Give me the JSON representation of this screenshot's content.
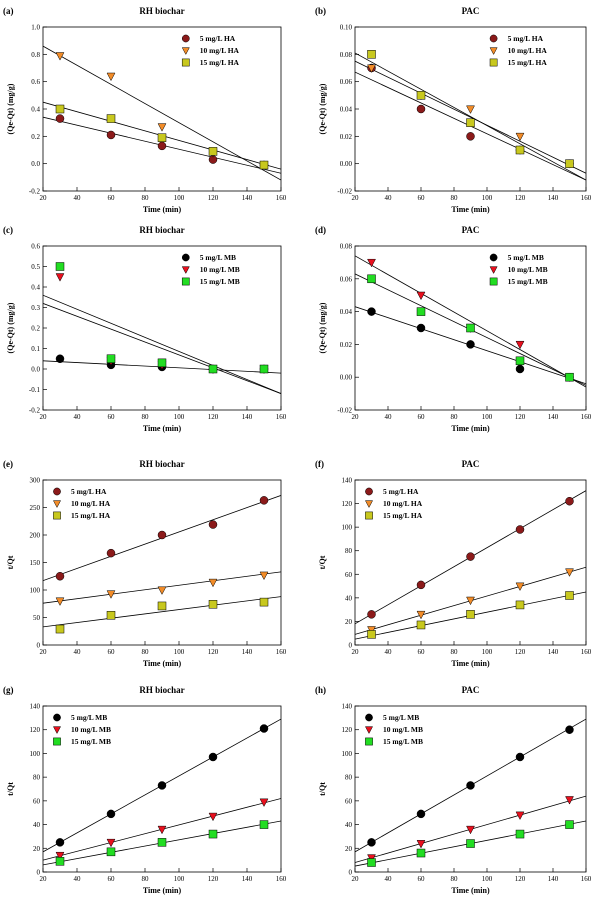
{
  "chart_data": [
    {
      "panel": "(a)",
      "type": "scatter",
      "title": "RH biochar",
      "xlabel": "Time (min)",
      "ylabel": "(Qe-Qt) (mg/g)",
      "xlim": [
        20,
        160
      ],
      "ylim": [
        -0.2,
        1.0
      ],
      "xticks": [
        20,
        40,
        60,
        80,
        100,
        120,
        140,
        160
      ],
      "yticks": [
        -0.2,
        0.0,
        0.2,
        0.4,
        0.6,
        0.8,
        1.0
      ],
      "legend": "top-right",
      "series": [
        {
          "name": "5 mg/L HA",
          "marker": "circle",
          "color": "#8b1a1a",
          "x": [
            30,
            60,
            90,
            120,
            150
          ],
          "y": [
            0.33,
            0.21,
            0.13,
            0.03,
            -0.01
          ],
          "fit": [
            [
              20,
              0.34
            ],
            [
              160,
              -0.07
            ]
          ]
        },
        {
          "name": "10 mg/L HA",
          "marker": "triangle-down",
          "color": "#f28c28",
          "x": [
            30,
            60,
            90,
            120,
            150
          ],
          "y": [
            0.79,
            0.64,
            0.27,
            0.08,
            -0.01
          ],
          "fit": [
            [
              20,
              0.86
            ],
            [
              160,
              -0.12
            ]
          ]
        },
        {
          "name": "15 mg/L HA",
          "marker": "square",
          "color": "#c8c81e",
          "x": [
            30,
            60,
            90,
            120,
            150
          ],
          "y": [
            0.4,
            0.33,
            0.19,
            0.09,
            -0.01
          ],
          "fit": [
            [
              20,
              0.45
            ],
            [
              160,
              -0.04
            ]
          ]
        }
      ]
    },
    {
      "panel": "(b)",
      "type": "scatter",
      "title": "PAC",
      "xlabel": "Time (min)",
      "ylabel": "(Qe-Qt) (mg/g)",
      "xlim": [
        20,
        160
      ],
      "ylim": [
        -0.02,
        0.1
      ],
      "xticks": [
        20,
        40,
        60,
        80,
        100,
        120,
        140,
        160
      ],
      "yticks": [
        -0.02,
        0.0,
        0.02,
        0.04,
        0.06,
        0.08,
        0.1
      ],
      "legend": "top-right",
      "series": [
        {
          "name": "5 mg/L HA",
          "marker": "circle",
          "color": "#8b1a1a",
          "x": [
            30,
            60,
            90,
            120,
            150
          ],
          "y": [
            0.07,
            0.04,
            0.02,
            0.01,
            0.0
          ],
          "fit": [
            [
              20,
              0.067
            ],
            [
              160,
              -0.012
            ]
          ]
        },
        {
          "name": "10 mg/L HA",
          "marker": "triangle-down",
          "color": "#f28c28",
          "x": [
            30,
            60,
            90,
            120,
            150
          ],
          "y": [
            0.07,
            0.05,
            0.04,
            0.02,
            0.0
          ],
          "fit": [
            [
              20,
              0.075
            ],
            [
              160,
              -0.007
            ]
          ]
        },
        {
          "name": "15 mg/L HA",
          "marker": "square",
          "color": "#c8c81e",
          "x": [
            30,
            60,
            90,
            120,
            150
          ],
          "y": [
            0.08,
            0.05,
            0.03,
            0.01,
            0.0
          ],
          "fit": [
            [
              20,
              0.081
            ],
            [
              160,
              -0.012
            ]
          ]
        }
      ]
    },
    {
      "panel": "(c)",
      "type": "scatter",
      "title": "RH biochar",
      "xlabel": "Time (min)",
      "ylabel": "(Qe-Qt) (mg/g)",
      "xlim": [
        20,
        160
      ],
      "ylim": [
        -0.2,
        0.6
      ],
      "xticks": [
        20,
        40,
        60,
        80,
        100,
        120,
        140,
        160
      ],
      "yticks": [
        -0.2,
        -0.1,
        0.0,
        0.1,
        0.2,
        0.3,
        0.4,
        0.5,
        0.6
      ],
      "legend": "top-right",
      "series": [
        {
          "name": "5 mg/L MB",
          "marker": "circle",
          "color": "#000000",
          "x": [
            30,
            60,
            90,
            120,
            150
          ],
          "y": [
            0.05,
            0.02,
            0.01,
            0.0,
            0.0
          ],
          "fit": [
            [
              20,
              0.04
            ],
            [
              160,
              -0.02
            ]
          ]
        },
        {
          "name": "10 mg/L MB",
          "marker": "triangle-down",
          "color": "#e8101e",
          "x": [
            30,
            60,
            90,
            120,
            150
          ],
          "y": [
            0.45,
            0.04,
            0.02,
            0.0,
            0.0
          ],
          "fit": [
            [
              20,
              0.36
            ],
            [
              160,
              -0.12
            ]
          ]
        },
        {
          "name": "15 mg/L MB",
          "marker": "square",
          "color": "#22dd22",
          "x": [
            30,
            60,
            90,
            120,
            150
          ],
          "y": [
            0.5,
            0.05,
            0.03,
            0.0,
            0.0
          ],
          "fit": [
            [
              20,
              0.32
            ],
            [
              160,
              -0.12
            ]
          ]
        }
      ]
    },
    {
      "panel": "(d)",
      "type": "scatter",
      "title": "PAC",
      "xlabel": "Time (min)",
      "ylabel": "(Qe-Qt) (mg/g)",
      "xlim": [
        20,
        160
      ],
      "ylim": [
        -0.02,
        0.08
      ],
      "xticks": [
        20,
        40,
        60,
        80,
        100,
        120,
        140,
        160
      ],
      "yticks": [
        -0.02,
        0.0,
        0.02,
        0.04,
        0.06,
        0.08
      ],
      "legend": "top-right",
      "series": [
        {
          "name": "5 mg/L MB",
          "marker": "circle",
          "color": "#000000",
          "x": [
            30,
            60,
            90,
            120,
            150
          ],
          "y": [
            0.04,
            0.03,
            0.02,
            0.005,
            0.0
          ],
          "fit": [
            [
              20,
              0.043
            ],
            [
              160,
              -0.004
            ]
          ]
        },
        {
          "name": "10 mg/L MB",
          "marker": "triangle-down",
          "color": "#e8101e",
          "x": [
            30,
            60,
            90,
            120,
            150
          ],
          "y": [
            0.07,
            0.05,
            0.03,
            0.02,
            0.0
          ],
          "fit": [
            [
              20,
              0.074
            ],
            [
              160,
              -0.006
            ]
          ]
        },
        {
          "name": "15 mg/L MB",
          "marker": "square",
          "color": "#22dd22",
          "x": [
            30,
            60,
            90,
            120,
            150
          ],
          "y": [
            0.06,
            0.04,
            0.03,
            0.01,
            0.0
          ],
          "fit": [
            [
              20,
              0.063
            ],
            [
              160,
              -0.005
            ]
          ]
        }
      ]
    },
    {
      "panel": "(e)",
      "type": "scatter",
      "title": "RH biochar",
      "xlabel": "Time (min)",
      "ylabel": "t/Qt",
      "xlim": [
        20,
        160
      ],
      "ylim": [
        0,
        300
      ],
      "xticks": [
        20,
        40,
        60,
        80,
        100,
        120,
        140,
        160
      ],
      "yticks": [
        0,
        50,
        100,
        150,
        200,
        250,
        300
      ],
      "legend": "top-left",
      "series": [
        {
          "name": "5 mg/L HA",
          "marker": "circle",
          "color": "#8b1a1a",
          "x": [
            30,
            60,
            90,
            120,
            150
          ],
          "y": [
            125,
            167,
            200,
            219,
            263
          ],
          "fit": [
            [
              20,
              117
            ],
            [
              160,
              272
            ]
          ]
        },
        {
          "name": "10 mg/L HA",
          "marker": "triangle-down",
          "color": "#f28c28",
          "x": [
            30,
            60,
            90,
            120,
            150
          ],
          "y": [
            80,
            93,
            100,
            114,
            127
          ],
          "fit": [
            [
              20,
              76
            ],
            [
              160,
              133
            ]
          ]
        },
        {
          "name": "15 mg/L HA",
          "marker": "square",
          "color": "#c8c81e",
          "x": [
            30,
            60,
            90,
            120,
            150
          ],
          "y": [
            29,
            54,
            71,
            74,
            78
          ],
          "fit": [
            [
              20,
              33
            ],
            [
              160,
              88
            ]
          ]
        }
      ]
    },
    {
      "panel": "(f)",
      "type": "scatter",
      "title": "PAC",
      "xlabel": "Time (min)",
      "ylabel": "t/Qt",
      "xlim": [
        20,
        160
      ],
      "ylim": [
        0,
        140
      ],
      "xticks": [
        20,
        40,
        60,
        80,
        100,
        120,
        140,
        160
      ],
      "yticks": [
        0,
        20,
        40,
        60,
        80,
        100,
        120,
        140
      ],
      "legend": "top-left",
      "series": [
        {
          "name": "5 mg/L HA",
          "marker": "circle",
          "color": "#8b1a1a",
          "x": [
            30,
            60,
            90,
            120,
            150
          ],
          "y": [
            26,
            51,
            75,
            98,
            122
          ],
          "fit": [
            [
              20,
              18
            ],
            [
              160,
              131
            ]
          ]
        },
        {
          "name": "10 mg/L HA",
          "marker": "triangle-down",
          "color": "#f28c28",
          "x": [
            30,
            60,
            90,
            120,
            150
          ],
          "y": [
            13,
            26,
            38,
            50,
            62
          ],
          "fit": [
            [
              20,
              9
            ],
            [
              160,
              66
            ]
          ]
        },
        {
          "name": "15 mg/L HA",
          "marker": "square",
          "color": "#c8c81e",
          "x": [
            30,
            60,
            90,
            120,
            150
          ],
          "y": [
            9,
            17,
            26,
            34,
            42
          ],
          "fit": [
            [
              20,
              5
            ],
            [
              160,
              45
            ]
          ]
        }
      ]
    },
    {
      "panel": "(g)",
      "type": "scatter",
      "title": "RH biochar",
      "xlabel": "Time (min)",
      "ylabel": "t/Qt",
      "xlim": [
        20,
        160
      ],
      "ylim": [
        0,
        140
      ],
      "xticks": [
        20,
        40,
        60,
        80,
        100,
        120,
        140,
        160
      ],
      "yticks": [
        0,
        20,
        40,
        60,
        80,
        100,
        120,
        140
      ],
      "legend": "top-left",
      "series": [
        {
          "name": "5 mg/L MB",
          "marker": "circle",
          "color": "#000000",
          "x": [
            30,
            60,
            90,
            120,
            150
          ],
          "y": [
            25,
            49,
            73,
            97,
            121
          ],
          "fit": [
            [
              20,
              17
            ],
            [
              160,
              129
            ]
          ]
        },
        {
          "name": "10 mg/L MB",
          "marker": "triangle-down",
          "color": "#e8101e",
          "x": [
            30,
            60,
            90,
            120,
            150
          ],
          "y": [
            14,
            25,
            36,
            47,
            59
          ],
          "fit": [
            [
              20,
              10
            ],
            [
              160,
              62
            ]
          ]
        },
        {
          "name": "15 mg/L MB",
          "marker": "square",
          "color": "#22dd22",
          "x": [
            30,
            60,
            90,
            120,
            150
          ],
          "y": [
            9,
            17,
            25,
            32,
            40
          ],
          "fit": [
            [
              20,
              6
            ],
            [
              160,
              43
            ]
          ]
        }
      ]
    },
    {
      "panel": "(h)",
      "type": "scatter",
      "title": "PAC",
      "xlabel": "Time (min)",
      "ylabel": "t/Qt",
      "xlim": [
        20,
        160
      ],
      "ylim": [
        0,
        140
      ],
      "xticks": [
        20,
        40,
        60,
        80,
        100,
        120,
        140,
        160
      ],
      "yticks": [
        0,
        20,
        40,
        60,
        80,
        100,
        120,
        140
      ],
      "legend": "top-left",
      "series": [
        {
          "name": "5 mg/L MB",
          "marker": "circle",
          "color": "#000000",
          "x": [
            30,
            60,
            90,
            120,
            150
          ],
          "y": [
            25,
            49,
            73,
            97,
            120
          ],
          "fit": [
            [
              20,
              17
            ],
            [
              160,
              129
            ]
          ]
        },
        {
          "name": "10 mg/L MB",
          "marker": "triangle-down",
          "color": "#e8101e",
          "x": [
            30,
            60,
            90,
            120,
            150
          ],
          "y": [
            12,
            24,
            36,
            48,
            61
          ],
          "fit": [
            [
              20,
              8
            ],
            [
              160,
              64
            ]
          ]
        },
        {
          "name": "15 mg/L MB",
          "marker": "square",
          "color": "#22dd22",
          "x": [
            30,
            60,
            90,
            120,
            150
          ],
          "y": [
            8,
            16,
            24,
            32,
            40
          ],
          "fit": [
            [
              20,
              5
            ],
            [
              160,
              43
            ]
          ]
        }
      ]
    }
  ]
}
